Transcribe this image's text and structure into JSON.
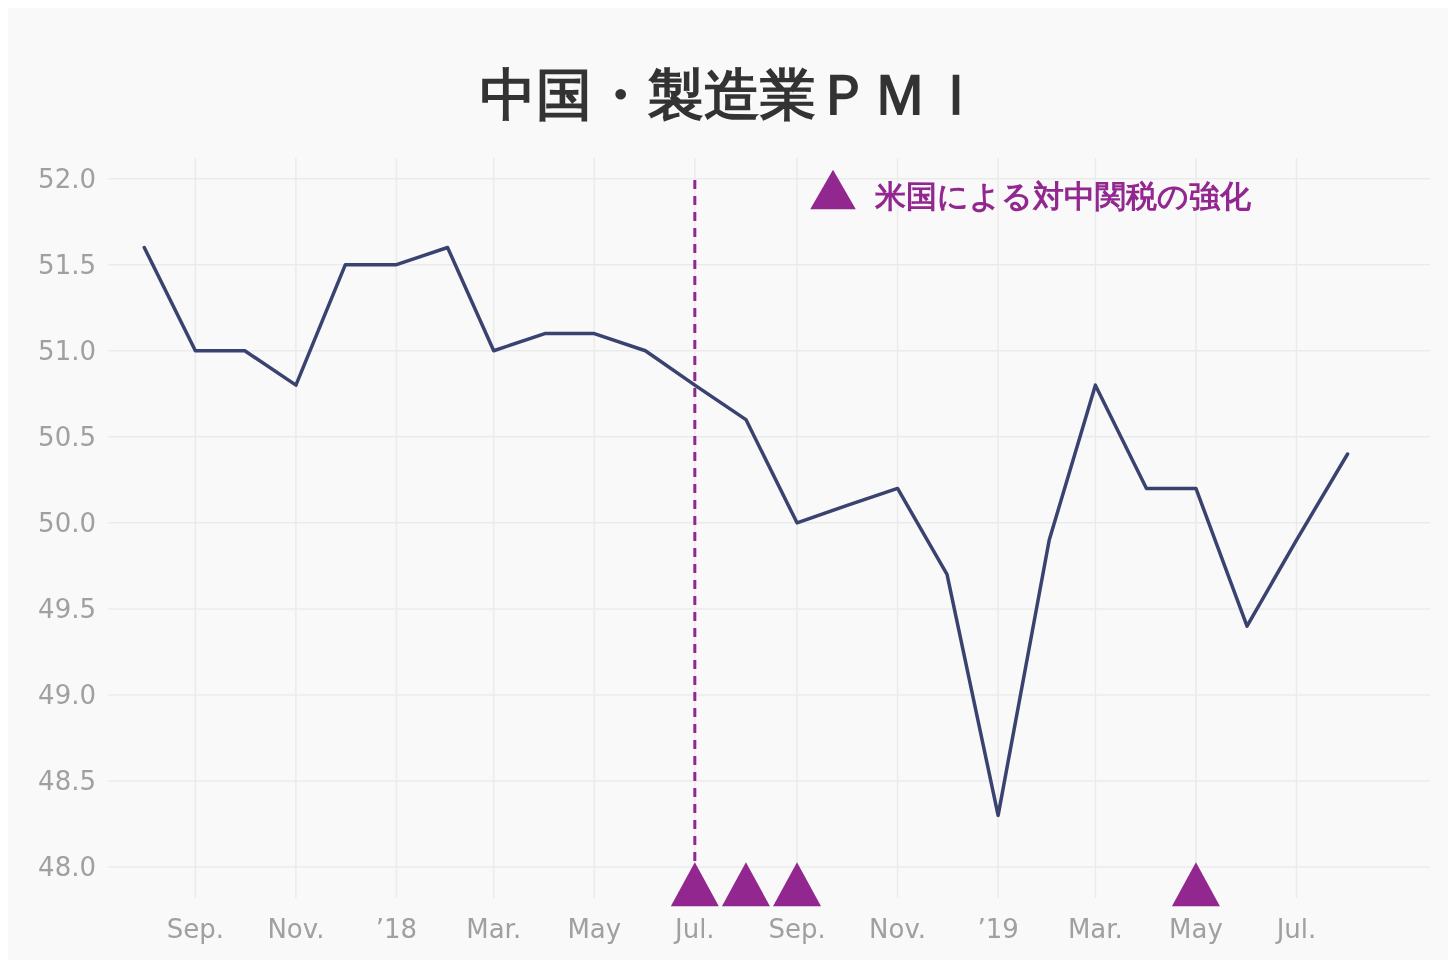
{
  "chart_data": {
    "type": "line",
    "title": "中国・製造業ＰＭＩ",
    "x": [
      "2017-08",
      "2017-09",
      "2017-10",
      "2017-11",
      "2017-12",
      "2018-01",
      "2018-02",
      "2018-03",
      "2018-04",
      "2018-05",
      "2018-06",
      "2018-07",
      "2018-08",
      "2018-09",
      "2018-10",
      "2018-11",
      "2018-12",
      "2019-01",
      "2019-02",
      "2019-03",
      "2019-04",
      "2019-05",
      "2019-06",
      "2019-07",
      "2019-08"
    ],
    "series": [
      {
        "color": "#3a4270",
        "values": [
          51.6,
          51.0,
          51.0,
          50.8,
          51.5,
          51.5,
          51.6,
          51.0,
          51.1,
          51.1,
          51.0,
          50.8,
          50.6,
          50.0,
          50.1,
          50.2,
          49.7,
          48.3,
          49.9,
          50.8,
          50.2,
          50.2,
          49.4,
          49.9,
          50.4
        ]
      },
      {
        "type": "scatter",
        "name": "米国による対中関税の強化",
        "color": "#92278f",
        "marker": "triangle",
        "x": [
          "2018-07",
          "2018-08",
          "2018-09",
          "2019-05"
        ],
        "values": [
          47.9,
          47.9,
          47.9,
          47.9
        ]
      }
    ],
    "xlim": [
      "2017-07-10",
      "2019-09-20"
    ],
    "xticks": [
      {
        "value": "2017-09",
        "label": "Sep."
      },
      {
        "value": "2017-11",
        "label": "Nov."
      },
      {
        "value": "2018-01",
        "label": "’18"
      },
      {
        "value": "2018-03",
        "label": "Mar."
      },
      {
        "value": "2018-05",
        "label": "May"
      },
      {
        "value": "2018-07",
        "label": "Jul."
      },
      {
        "value": "2018-09",
        "label": "Sep."
      },
      {
        "value": "2018-11",
        "label": "Nov."
      },
      {
        "value": "2019-01",
        "label": "’19"
      },
      {
        "value": "2019-03",
        "label": "Mar."
      },
      {
        "value": "2019-05",
        "label": "May"
      },
      {
        "value": "2019-07",
        "label": "Jul."
      }
    ],
    "ylim": [
      47.82,
      52.12
    ],
    "yticks": [
      {
        "value": 48,
        "label": "48.0"
      },
      {
        "value": 48.5,
        "label": "48.5"
      },
      {
        "value": 49,
        "label": "49.0"
      },
      {
        "value": 49.5,
        "label": "49.5"
      },
      {
        "value": 50,
        "label": "50.0"
      },
      {
        "value": 50.5,
        "label": "50.5"
      },
      {
        "value": 51,
        "label": "51.0"
      },
      {
        "value": 51.5,
        "label": "51.5"
      },
      {
        "value": 52,
        "label": "52.0"
      }
    ],
    "ref_lines": [
      {
        "axis": "x",
        "value": "2018-07",
        "color": "#92278f",
        "line_style": "dashed"
      }
    ],
    "grid": true,
    "legend": "top right",
    "line_style": "solid",
    "marker": "none"
  }
}
